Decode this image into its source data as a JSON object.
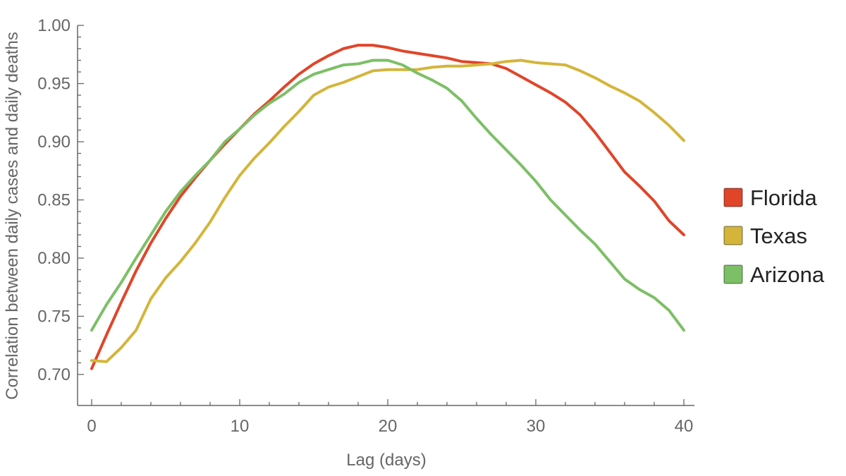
{
  "chart_data": {
    "type": "line",
    "title": "",
    "xlabel": "Lag (days)",
    "ylabel": "Correlation between daily cases and daily deaths",
    "xlim": [
      0,
      40
    ],
    "ylim": [
      0.69,
      1.0
    ],
    "x_ticks": [
      "0",
      "10",
      "20",
      "30",
      "40"
    ],
    "y_ticks": [
      "0.70",
      "0.75",
      "0.80",
      "0.85",
      "0.90",
      "0.95",
      "1.00"
    ],
    "grid": false,
    "legend": "right",
    "x": [
      0,
      1,
      2,
      3,
      4,
      5,
      6,
      7,
      8,
      9,
      10,
      11,
      12,
      13,
      14,
      15,
      16,
      17,
      18,
      19,
      20,
      21,
      22,
      23,
      24,
      25,
      26,
      27,
      28,
      29,
      30,
      31,
      32,
      33,
      34,
      35,
      36,
      37,
      38,
      39,
      40
    ],
    "series": [
      {
        "name": "Florida",
        "color": "#e0452a",
        "values": [
          0.705,
          0.734,
          0.762,
          0.789,
          0.813,
          0.834,
          0.853,
          0.869,
          0.884,
          0.898,
          0.911,
          0.924,
          0.935,
          0.947,
          0.958,
          0.967,
          0.974,
          0.98,
          0.983,
          0.983,
          0.981,
          0.978,
          0.976,
          0.974,
          0.972,
          0.969,
          0.968,
          0.967,
          0.963,
          0.956,
          0.949,
          0.942,
          0.934,
          0.923,
          0.908,
          0.891,
          0.874,
          0.862,
          0.849,
          0.832,
          0.82
        ]
      },
      {
        "name": "Texas",
        "color": "#d4b53a",
        "values": [
          0.712,
          0.711,
          0.723,
          0.738,
          0.765,
          0.783,
          0.797,
          0.813,
          0.831,
          0.852,
          0.871,
          0.886,
          0.899,
          0.913,
          0.926,
          0.94,
          0.947,
          0.951,
          0.956,
          0.961,
          0.962,
          0.962,
          0.962,
          0.964,
          0.965,
          0.965,
          0.966,
          0.967,
          0.969,
          0.97,
          0.968,
          0.967,
          0.966,
          0.961,
          0.955,
          0.948,
          0.942,
          0.935,
          0.925,
          0.914,
          0.901
        ]
      },
      {
        "name": "Arizona",
        "color": "#7dbf66",
        "values": [
          0.738,
          0.76,
          0.779,
          0.8,
          0.82,
          0.84,
          0.857,
          0.871,
          0.884,
          0.9,
          0.911,
          0.923,
          0.933,
          0.941,
          0.951,
          0.958,
          0.962,
          0.966,
          0.967,
          0.97,
          0.97,
          0.966,
          0.959,
          0.953,
          0.946,
          0.935,
          0.92,
          0.906,
          0.893,
          0.88,
          0.866,
          0.85,
          0.837,
          0.824,
          0.812,
          0.797,
          0.782,
          0.773,
          0.766,
          0.755,
          0.738
        ]
      }
    ]
  }
}
